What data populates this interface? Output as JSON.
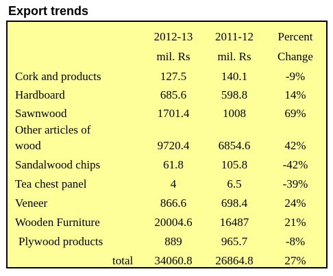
{
  "title": "Export trends",
  "headers": {
    "col1_line1": "2012-13",
    "col1_line2": "mil. Rs",
    "col2_line1": "2011-12",
    "col2_line2": "mil. Rs",
    "col3_line1": "Percent",
    "col3_line2": "Change"
  },
  "rows": [
    {
      "label": "Cork and products",
      "v2012": "127.5",
      "v2011": "140.1",
      "change": "-9%"
    },
    {
      "label": "Hardboard",
      "v2012": "685.6",
      "v2011": "598.8",
      "change": "14%"
    },
    {
      "label": "Sawnwood",
      "v2012": "1701.4",
      "v2011": "1008",
      "change": "69%"
    },
    {
      "label_line1": "Other articles of",
      "label_line2": "wood",
      "v2012": "9720.4",
      "v2011": "6854.6",
      "change": "42%"
    },
    {
      "label": "Sandalwood chips",
      "v2012": "61.8",
      "v2011": "105.8",
      "change": "-42%"
    },
    {
      "label": "Tea chest panel",
      "v2012": "4",
      "v2011": "6.5",
      "change": "-39%"
    },
    {
      "label": "Veneer",
      "v2012": "866.6",
      "v2011": "698.4",
      "change": "24%"
    },
    {
      "label": "Wooden Furniture",
      "v2012": "20004.6",
      "v2011": "16487",
      "change": "21%"
    },
    {
      "label": "Plywood products",
      "v2012": "889",
      "v2011": "965.7",
      "change": "-8%"
    }
  ],
  "total": {
    "label": "total",
    "v2012": "34060.8",
    "v2011": "26864.8",
    "change": "27%"
  }
}
